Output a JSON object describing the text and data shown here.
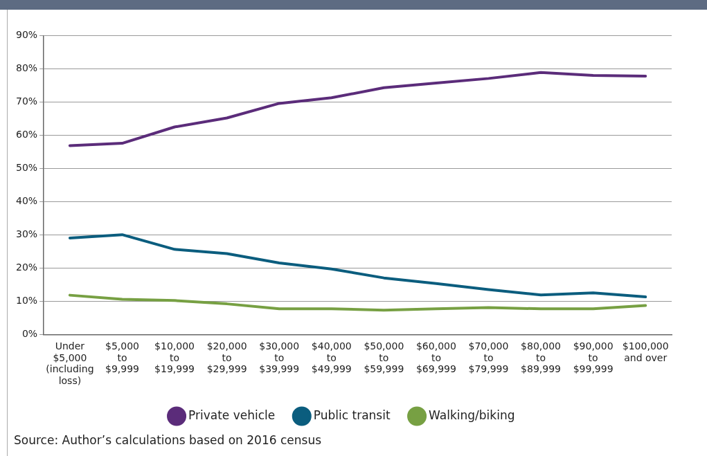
{
  "chart_data": {
    "type": "line",
    "categories": [
      "Under $5,000 (including loss)",
      "$5,000 to $9,999",
      "$10,000 to $19,999",
      "$20,000 to $29,999",
      "$30,000 to $39,999",
      "$40,000 to $49,999",
      "$50,000 to $59,999",
      "$60,000 to $69,999",
      "$70,000 to $79,999",
      "$80,000 to $89,999",
      "$90,000 to $99,999",
      "$100,000 and over"
    ],
    "series": [
      {
        "name": "Private vehicle",
        "color": "#5b2c7a",
        "values": [
          56.9,
          57.6,
          62.5,
          65.2,
          69.6,
          71.3,
          74.3,
          75.7,
          77.1,
          78.9,
          78.0,
          77.8
        ]
      },
      {
        "name": "Public transit",
        "color": "#0b5d7e",
        "values": [
          29.1,
          30.1,
          25.7,
          24.4,
          21.6,
          19.8,
          17.1,
          15.4,
          13.6,
          12.0,
          12.6,
          11.4
        ]
      },
      {
        "name": "Walking/biking",
        "color": "#77a043",
        "values": [
          11.9,
          10.7,
          10.3,
          9.3,
          7.8,
          7.8,
          7.4,
          7.8,
          8.2,
          7.8,
          7.8,
          8.8
        ]
      }
    ],
    "ylim": [
      0,
      90
    ],
    "yticks": [
      {
        "value": 0,
        "label": "0%"
      },
      {
        "value": 10,
        "label": "10%"
      },
      {
        "value": 20,
        "label": "20%"
      },
      {
        "value": 30,
        "label": "30%"
      },
      {
        "value": 40,
        "label": "40%"
      },
      {
        "value": 50,
        "label": "50%"
      },
      {
        "value": 60,
        "label": "60%"
      },
      {
        "value": 70,
        "label": "70%"
      },
      {
        "value": 80,
        "label": "80%"
      },
      {
        "value": 90,
        "label": "90%"
      }
    ],
    "grid": "y",
    "legend": "bottom",
    "marker": "none",
    "line_style": "solid",
    "annotations": [
      "Source: Author’s calculations based on 2016 census"
    ]
  }
}
